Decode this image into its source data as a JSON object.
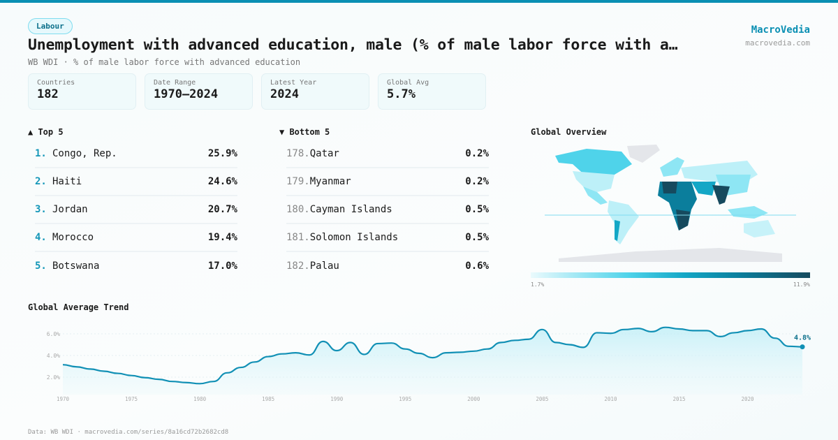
{
  "badge": "Labour",
  "title": "Unemployment with advanced education, male (% of male labor force with a…",
  "subtitle": "WB WDI · % of male labor force with advanced education",
  "brand": {
    "name": "MacroVedia",
    "url": "macrovedia.com"
  },
  "cards": [
    {
      "label": "Countries",
      "value": "182"
    },
    {
      "label": "Date Range",
      "value": "1970–2024"
    },
    {
      "label": "Latest Year",
      "value": "2024"
    },
    {
      "label": "Global Avg",
      "value": "5.7%"
    }
  ],
  "top": {
    "title": "▲ Top 5",
    "items": [
      {
        "rank": "1.",
        "name": "Congo, Rep.",
        "value": "25.9%"
      },
      {
        "rank": "2.",
        "name": "Haiti",
        "value": "24.6%"
      },
      {
        "rank": "3.",
        "name": "Jordan",
        "value": "20.7%"
      },
      {
        "rank": "4.",
        "name": "Morocco",
        "value": "19.4%"
      },
      {
        "rank": "5.",
        "name": "Botswana",
        "value": "17.0%"
      }
    ]
  },
  "bottom": {
    "title": "▼ Bottom 5",
    "items": [
      {
        "rank": "178.",
        "name": "Qatar",
        "value": "0.2%"
      },
      {
        "rank": "179.",
        "name": "Myanmar",
        "value": "0.2%"
      },
      {
        "rank": "180.",
        "name": "Cayman Islands",
        "value": "0.5%"
      },
      {
        "rank": "181.",
        "name": "Solomon Islands",
        "value": "0.5%"
      },
      {
        "rank": "182.",
        "name": "Palau",
        "value": "0.6%"
      }
    ]
  },
  "map": {
    "title": "Global Overview",
    "legend_min": "1.7%",
    "legend_max": "11.9%"
  },
  "footer": "Data: WB WDI · macrovedia.com/series/8a16cd72b2682cd8",
  "colors": {
    "accent": "#0a8fb3",
    "line": "#1190b5"
  },
  "chart_data": {
    "type": "line",
    "title": "Global Average Trend",
    "xlabel": "",
    "ylabel": "",
    "x": [
      1970,
      1971,
      1972,
      1973,
      1974,
      1975,
      1976,
      1977,
      1978,
      1979,
      1980,
      1981,
      1982,
      1983,
      1984,
      1985,
      1986,
      1987,
      1988,
      1989,
      1990,
      1991,
      1992,
      1993,
      1994,
      1995,
      1996,
      1997,
      1998,
      1999,
      2000,
      2001,
      2002,
      2003,
      2004,
      2005,
      2006,
      2007,
      2008,
      2009,
      2010,
      2011,
      2012,
      2013,
      2014,
      2015,
      2016,
      2017,
      2018,
      2019,
      2020,
      2021,
      2022,
      2023,
      2024
    ],
    "y": [
      3.15,
      2.95,
      2.75,
      2.55,
      2.35,
      2.15,
      1.95,
      1.8,
      1.6,
      1.5,
      1.4,
      1.6,
      2.4,
      2.9,
      3.4,
      3.9,
      4.15,
      4.25,
      4.05,
      5.3,
      4.45,
      5.2,
      4.1,
      5.1,
      5.15,
      4.6,
      4.2,
      3.8,
      4.25,
      4.3,
      4.4,
      4.6,
      5.2,
      5.4,
      5.5,
      6.4,
      5.2,
      5.0,
      4.75,
      6.1,
      6.05,
      6.4,
      6.5,
      6.2,
      6.6,
      6.45,
      6.3,
      6.3,
      5.75,
      6.1,
      6.3,
      6.45,
      5.6,
      4.85,
      4.8
    ],
    "xticks": [
      "1970",
      "1975",
      "1980",
      "1985",
      "1990",
      "1995",
      "2000",
      "2005",
      "2010",
      "2015",
      "2020"
    ],
    "yticks": [
      "2.0%",
      "4.0%",
      "6.0%"
    ],
    "ylim": [
      0,
      7
    ],
    "grid": true,
    "last_label": "4.8%"
  }
}
